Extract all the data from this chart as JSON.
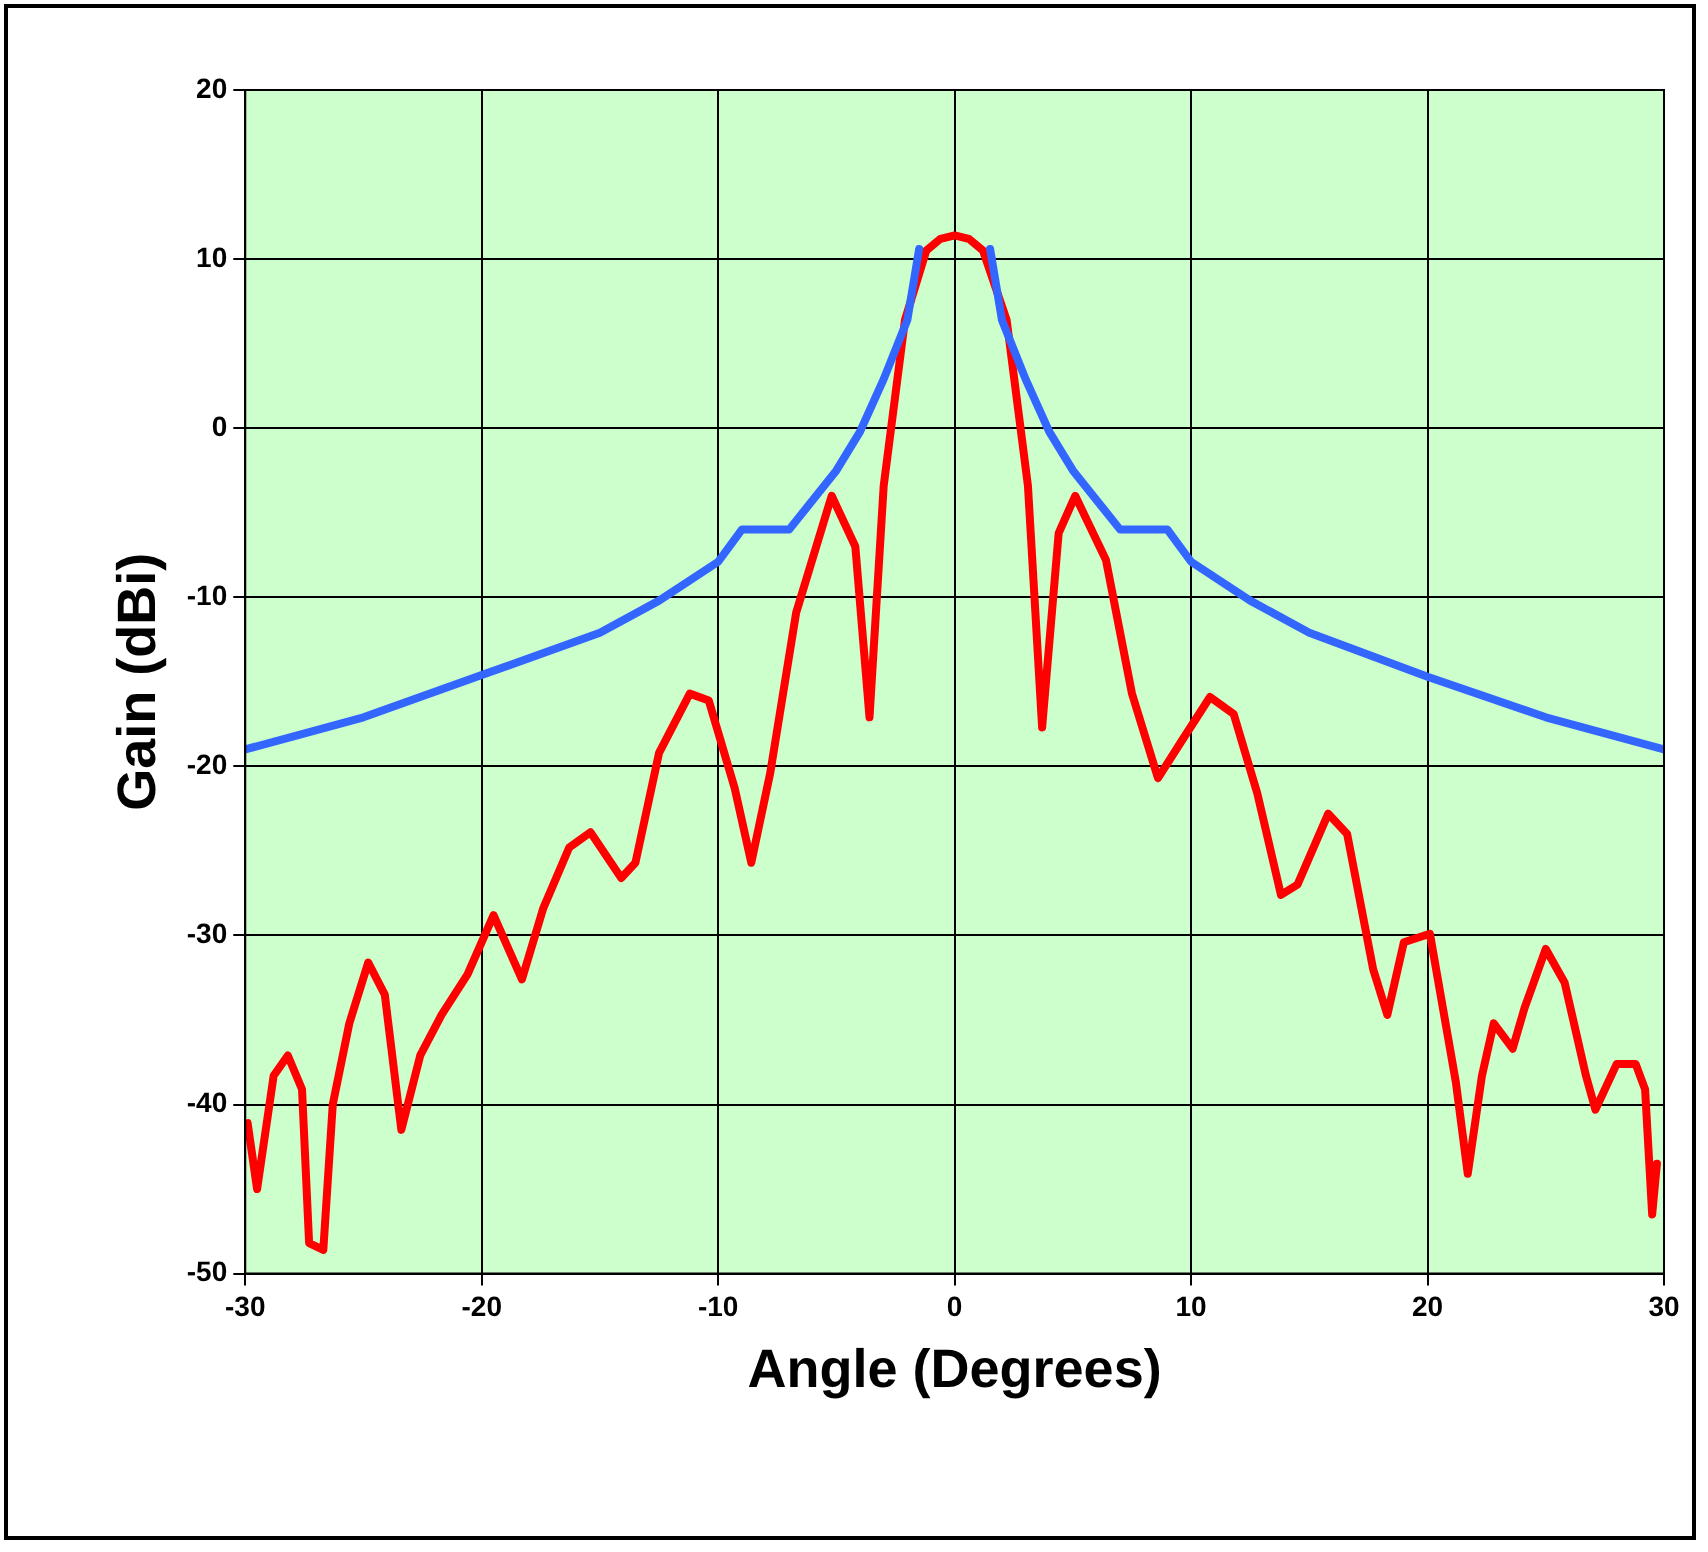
{
  "chart_data": {
    "type": "line",
    "xlabel": "Angle (Degrees)",
    "ylabel": "Gain (dBi)",
    "xlim": [
      -30,
      30
    ],
    "xticks": [
      -30,
      -20,
      -10,
      0,
      10,
      20,
      30
    ],
    "ylim": [
      -50,
      20
    ],
    "yticks": [
      -50,
      -40,
      -30,
      -20,
      -10,
      0,
      10,
      20
    ],
    "grid": true,
    "marker": "none",
    "line_style": "solid",
    "series": [
      {
        "color": "#3366ff",
        "x": [
          -30,
          -25,
          -20,
          -15,
          -12.5,
          -10,
          -9,
          -7,
          -5,
          -4,
          -3,
          -2,
          -1.5,
          0,
          1.5,
          2,
          3,
          4,
          5,
          7,
          9,
          10,
          12.5,
          15,
          20,
          25,
          30
        ],
        "values": [
          -19,
          -17.1,
          -14.6,
          -12.1,
          -10.2,
          -7.9,
          -6,
          -6,
          -2.5,
          -0.2,
          2.9,
          6.4,
          10.6,
          null,
          10.6,
          6.4,
          2.9,
          -0.2,
          -2.5,
          -6,
          -6,
          -7.9,
          -10.2,
          -12.1,
          -14.7,
          -17.1,
          -19
        ]
      },
      {
        "color": "#ff0000",
        "x": [
          -29.9,
          -29.5,
          -28.8,
          -28.2,
          -27.6,
          -27.3,
          -26.7,
          -26.3,
          -25.6,
          -24.8,
          -24.1,
          -23.4,
          -22.6,
          -21.7,
          -20.6,
          -19.5,
          -18.3,
          -17.4,
          -16.3,
          -15.4,
          -14.1,
          -13.5,
          -12.5,
          -11.2,
          -10.4,
          -9.3,
          -8.6,
          -7.8,
          -6.7,
          -5.2,
          -4.2,
          -3.6,
          -3.0,
          -2.1,
          -1.2,
          -0.6,
          0,
          0.6,
          1.2,
          2.2,
          3.1,
          3.7,
          4.4,
          5.1,
          6.4,
          7.5,
          8.6,
          9.6,
          10.8,
          11.8,
          12.8,
          13.8,
          14.5,
          15.8,
          16.6,
          17.7,
          18.3,
          19.0,
          20.1,
          21.2,
          21.7,
          22.3,
          22.8,
          23.6,
          24.1,
          25.0,
          25.8,
          26.7,
          27.1,
          28.0,
          28.8,
          29.2,
          29.5,
          29.7
        ],
        "values": [
          -41.1,
          -45,
          -38.3,
          -37.1,
          -39.1,
          -48.2,
          -48.6,
          -40,
          -35.2,
          -31.6,
          -33.5,
          -41.5,
          -37.1,
          -34.7,
          -32.3,
          -28.8,
          -32.6,
          -28.4,
          -24.8,
          -23.9,
          -26.6,
          -25.7,
          -19.2,
          -15.7,
          -16.1,
          -21.3,
          -25.7,
          -20.4,
          -10.9,
          -4,
          -7,
          -17.1,
          -3.4,
          6.4,
          10.5,
          11.2,
          11.4,
          11.2,
          10.5,
          6.4,
          -3.4,
          -17.7,
          -6.2,
          -4,
          -7.8,
          -15.7,
          -20.7,
          -18.5,
          -15.9,
          -16.9,
          -21.6,
          -27.6,
          -27,
          -22.8,
          -24,
          -32,
          -34.7,
          -30.4,
          -29.9,
          -38.7,
          -44.1,
          -38.3,
          -35.2,
          -36.7,
          -34.3,
          -30.8,
          -32.8,
          -38.3,
          -40.3,
          -37.6,
          -37.6,
          -39.1,
          -46.5,
          -43.5
        ]
      }
    ]
  }
}
